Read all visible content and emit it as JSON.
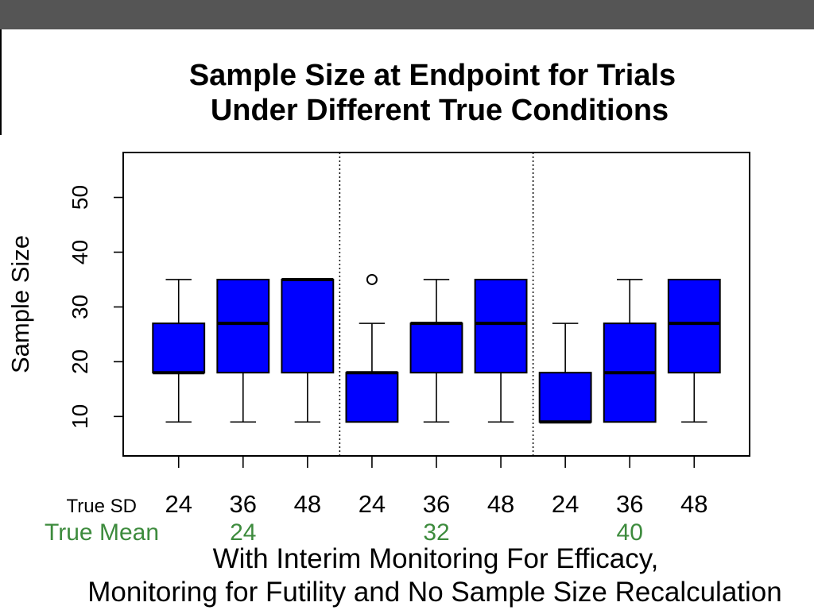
{
  "colors": {
    "background": "#ffffff",
    "top_bar": "#555555",
    "box_fill": "#0000ff",
    "box_stroke": "#000000",
    "mean_text": "#3d8b3d"
  },
  "chart_data": {
    "type": "box",
    "title": [
      "Sample Size at Endpoint for Trials",
      "Under Different True Conditions"
    ],
    "ylabel": "Sample Size",
    "xlabel": [
      "With Interim Monitoring For Efficacy,",
      "Monitoring for Futility and No Sample Size Recalculation"
    ],
    "ylim": [
      2.8,
      58.2
    ],
    "yticks": [
      10,
      20,
      30,
      40,
      50
    ],
    "grid": false,
    "legend": "none",
    "row_labels": {
      "sd": "True SD",
      "mean": "True Mean"
    },
    "groups": [
      {
        "true_mean": "24",
        "boxes": [
          {
            "true_sd": "24",
            "min": 9,
            "q1": 18,
            "median": 18,
            "q3": 27,
            "max": 35,
            "outliers": []
          },
          {
            "true_sd": "36",
            "min": 9,
            "q1": 18,
            "median": 27,
            "q3": 35,
            "max": 35,
            "outliers": []
          },
          {
            "true_sd": "48",
            "min": 9,
            "q1": 18,
            "median": 35,
            "q3": 35,
            "max": 35,
            "outliers": []
          }
        ]
      },
      {
        "true_mean": "32",
        "boxes": [
          {
            "true_sd": "24",
            "min": 9,
            "q1": 9,
            "median": 18,
            "q3": 18,
            "max": 27,
            "outliers": [
              35
            ]
          },
          {
            "true_sd": "36",
            "min": 9,
            "q1": 18,
            "median": 27,
            "q3": 27,
            "max": 35,
            "outliers": []
          },
          {
            "true_sd": "48",
            "min": 9,
            "q1": 18,
            "median": 27,
            "q3": 35,
            "max": 35,
            "outliers": []
          }
        ]
      },
      {
        "true_mean": "40",
        "boxes": [
          {
            "true_sd": "24",
            "min": 9,
            "q1": 9,
            "median": 9,
            "q3": 18,
            "max": 27,
            "outliers": []
          },
          {
            "true_sd": "36",
            "min": 9,
            "q1": 9,
            "median": 18,
            "q3": 27,
            "max": 35,
            "outliers": []
          },
          {
            "true_sd": "48",
            "min": 9,
            "q1": 18,
            "median": 27,
            "q3": 35,
            "max": 35,
            "outliers": []
          }
        ]
      }
    ]
  }
}
